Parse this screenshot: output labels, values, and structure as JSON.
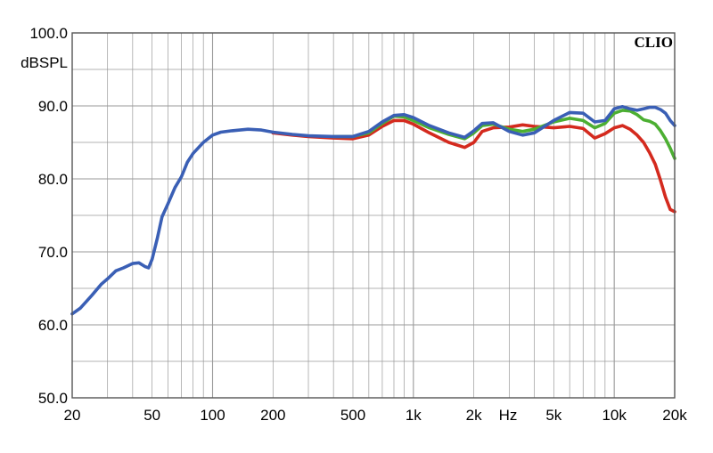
{
  "chart_data": {
    "type": "line",
    "brand": "CLIO",
    "ylabel": "dBSPL",
    "xlabel": "Hz",
    "x_scale": "log",
    "xlim": [
      20,
      20000
    ],
    "ylim": [
      50,
      100
    ],
    "grid": true,
    "x_ticks": [
      {
        "value": 20,
        "label": "20"
      },
      {
        "value": 50,
        "label": "50"
      },
      {
        "value": 100,
        "label": "100"
      },
      {
        "value": 200,
        "label": "200"
      },
      {
        "value": 500,
        "label": "500"
      },
      {
        "value": 1000,
        "label": "1k"
      },
      {
        "value": 2000,
        "label": "2k"
      },
      {
        "value": 5000,
        "label": "5k"
      },
      {
        "value": 10000,
        "label": "10k"
      },
      {
        "value": 20000,
        "label": "20k"
      }
    ],
    "y_ticks": [
      {
        "value": 100,
        "label": "100.0"
      },
      {
        "value": 90,
        "label": "90.0"
      },
      {
        "value": 80,
        "label": "80.0"
      },
      {
        "value": 70,
        "label": "70.0"
      },
      {
        "value": 60,
        "label": "60.0"
      },
      {
        "value": 50,
        "label": "50.0"
      }
    ],
    "series": [
      {
        "color": "#d42a1e",
        "points": [
          [
            200,
            86.3
          ],
          [
            250,
            86.0
          ],
          [
            300,
            85.8
          ],
          [
            400,
            85.6
          ],
          [
            500,
            85.5
          ],
          [
            600,
            86.0
          ],
          [
            700,
            87.2
          ],
          [
            800,
            88.0
          ],
          [
            900,
            88.0
          ],
          [
            1000,
            87.5
          ],
          [
            1200,
            86.3
          ],
          [
            1500,
            85.0
          ],
          [
            1800,
            84.3
          ],
          [
            2000,
            85.0
          ],
          [
            2200,
            86.5
          ],
          [
            2500,
            87.0
          ],
          [
            3000,
            87.1
          ],
          [
            3500,
            87.4
          ],
          [
            4000,
            87.2
          ],
          [
            5000,
            87.0
          ],
          [
            6000,
            87.2
          ],
          [
            7000,
            86.9
          ],
          [
            8000,
            85.6
          ],
          [
            9000,
            86.2
          ],
          [
            10000,
            87.0
          ],
          [
            11000,
            87.3
          ],
          [
            12000,
            86.8
          ],
          [
            13000,
            86.0
          ],
          [
            14000,
            85.0
          ],
          [
            15000,
            83.6
          ],
          [
            16000,
            82.0
          ],
          [
            17000,
            79.8
          ],
          [
            18000,
            77.5
          ],
          [
            19000,
            75.8
          ],
          [
            20000,
            75.5
          ]
        ]
      },
      {
        "color": "#4caf32",
        "points": [
          [
            400,
            85.8
          ],
          [
            500,
            85.8
          ],
          [
            600,
            86.3
          ],
          [
            700,
            87.6
          ],
          [
            800,
            88.6
          ],
          [
            900,
            88.5
          ],
          [
            1000,
            88.0
          ],
          [
            1200,
            87.0
          ],
          [
            1500,
            86.1
          ],
          [
            1800,
            85.5
          ],
          [
            2000,
            86.3
          ],
          [
            2200,
            87.3
          ],
          [
            2500,
            87.5
          ],
          [
            3000,
            86.8
          ],
          [
            3500,
            86.5
          ],
          [
            4000,
            86.8
          ],
          [
            5000,
            87.8
          ],
          [
            6000,
            88.3
          ],
          [
            7000,
            88.0
          ],
          [
            8000,
            87.0
          ],
          [
            9000,
            87.6
          ],
          [
            10000,
            89.0
          ],
          [
            11000,
            89.4
          ],
          [
            12000,
            89.3
          ],
          [
            13000,
            88.8
          ],
          [
            14000,
            88.1
          ],
          [
            15000,
            87.9
          ],
          [
            16000,
            87.5
          ],
          [
            17000,
            86.6
          ],
          [
            18000,
            85.5
          ],
          [
            19000,
            84.2
          ],
          [
            20000,
            82.8
          ]
        ]
      },
      {
        "color": "#3a5fb5",
        "points": [
          [
            20,
            61.5
          ],
          [
            22,
            62.3
          ],
          [
            25,
            64.0
          ],
          [
            28,
            65.6
          ],
          [
            30,
            66.3
          ],
          [
            33,
            67.4
          ],
          [
            36,
            67.8
          ],
          [
            40,
            68.4
          ],
          [
            43,
            68.5
          ],
          [
            46,
            68.0
          ],
          [
            48,
            67.8
          ],
          [
            50,
            69.0
          ],
          [
            53,
            71.8
          ],
          [
            56,
            74.8
          ],
          [
            60,
            76.6
          ],
          [
            65,
            78.8
          ],
          [
            70,
            80.3
          ],
          [
            75,
            82.3
          ],
          [
            80,
            83.5
          ],
          [
            90,
            85.0
          ],
          [
            100,
            86.0
          ],
          [
            110,
            86.4
          ],
          [
            125,
            86.6
          ],
          [
            150,
            86.8
          ],
          [
            175,
            86.7
          ],
          [
            200,
            86.4
          ],
          [
            250,
            86.1
          ],
          [
            300,
            85.9
          ],
          [
            400,
            85.8
          ],
          [
            500,
            85.8
          ],
          [
            600,
            86.5
          ],
          [
            700,
            87.8
          ],
          [
            800,
            88.7
          ],
          [
            900,
            88.8
          ],
          [
            1000,
            88.4
          ],
          [
            1200,
            87.3
          ],
          [
            1500,
            86.3
          ],
          [
            1800,
            85.7
          ],
          [
            2000,
            86.6
          ],
          [
            2200,
            87.6
          ],
          [
            2500,
            87.7
          ],
          [
            3000,
            86.5
          ],
          [
            3500,
            86.0
          ],
          [
            4000,
            86.3
          ],
          [
            5000,
            88.0
          ],
          [
            6000,
            89.1
          ],
          [
            7000,
            89.0
          ],
          [
            8000,
            87.8
          ],
          [
            9000,
            88.0
          ],
          [
            10000,
            89.6
          ],
          [
            11000,
            89.9
          ],
          [
            12000,
            89.6
          ],
          [
            13000,
            89.4
          ],
          [
            14000,
            89.6
          ],
          [
            15000,
            89.8
          ],
          [
            16000,
            89.8
          ],
          [
            17000,
            89.5
          ],
          [
            18000,
            89.0
          ],
          [
            19000,
            88.0
          ],
          [
            20000,
            87.3
          ]
        ]
      }
    ]
  }
}
